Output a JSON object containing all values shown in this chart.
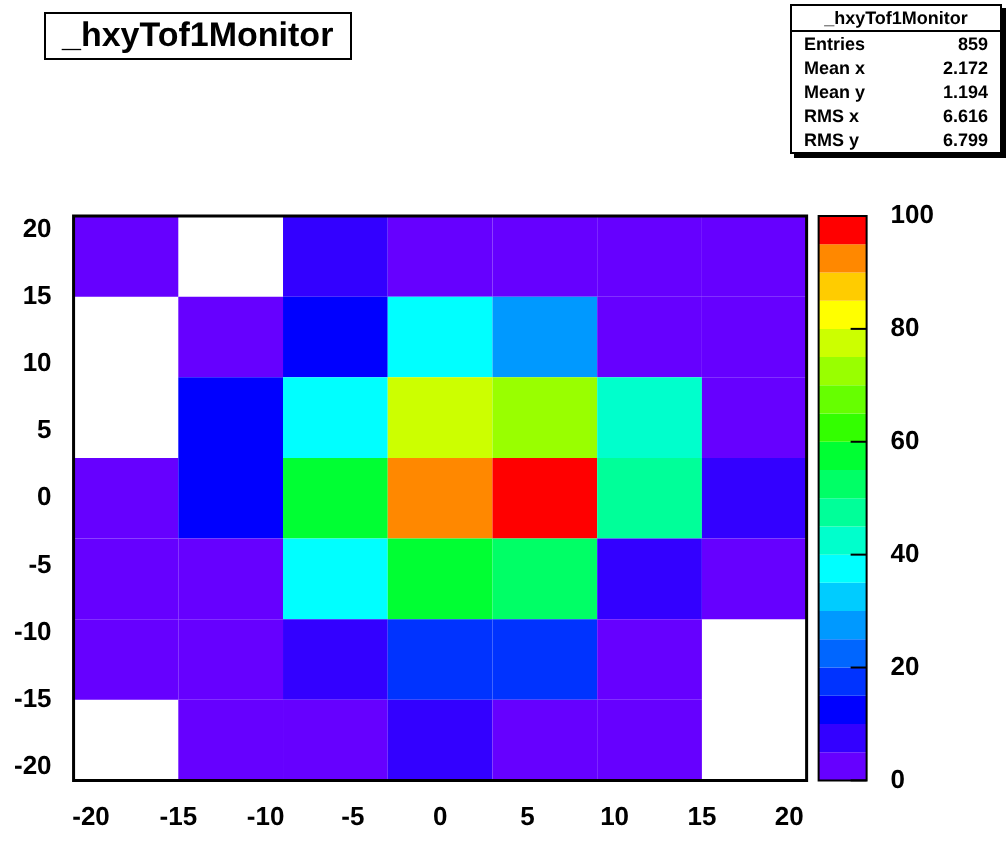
{
  "chart_data": {
    "type": "heatmap",
    "title": "_hxyTof1Monitor",
    "x": [
      -18,
      -12,
      -6,
      0,
      6,
      12,
      18
    ],
    "y": [
      18,
      12,
      6,
      0,
      -6,
      -12,
      -18
    ],
    "cells": [
      [
        2,
        null,
        7,
        2,
        2,
        2,
        2
      ],
      [
        null,
        2,
        12,
        37,
        27,
        2,
        2
      ],
      [
        null,
        12,
        37,
        78,
        72,
        42,
        2
      ],
      [
        2,
        12,
        57,
        92,
        98,
        47,
        7
      ],
      [
        2,
        2,
        37,
        58,
        50,
        7,
        2
      ],
      [
        2,
        2,
        7,
        15,
        15,
        2,
        null
      ],
      [
        null,
        2,
        2,
        7,
        2,
        2,
        null
      ]
    ],
    "xlim": [
      -21,
      21
    ],
    "xticks": [
      -20,
      -15,
      -10,
      -5,
      0,
      5,
      10,
      15,
      20
    ],
    "ylim": [
      -21,
      21
    ],
    "yticks": [
      -20,
      -15,
      -10,
      -5,
      0,
      5,
      10,
      15,
      20
    ],
    "clim": [
      0,
      100
    ],
    "cticks": [
      0,
      20,
      40,
      60,
      80,
      100
    ],
    "annotations": [
      "_hxyTof1Monitor",
      "Entries",
      "859",
      "Mean x",
      "2.172",
      "Mean y",
      "1.194",
      "RMS x",
      "6.616",
      "RMS y",
      "6.799"
    ]
  }
}
